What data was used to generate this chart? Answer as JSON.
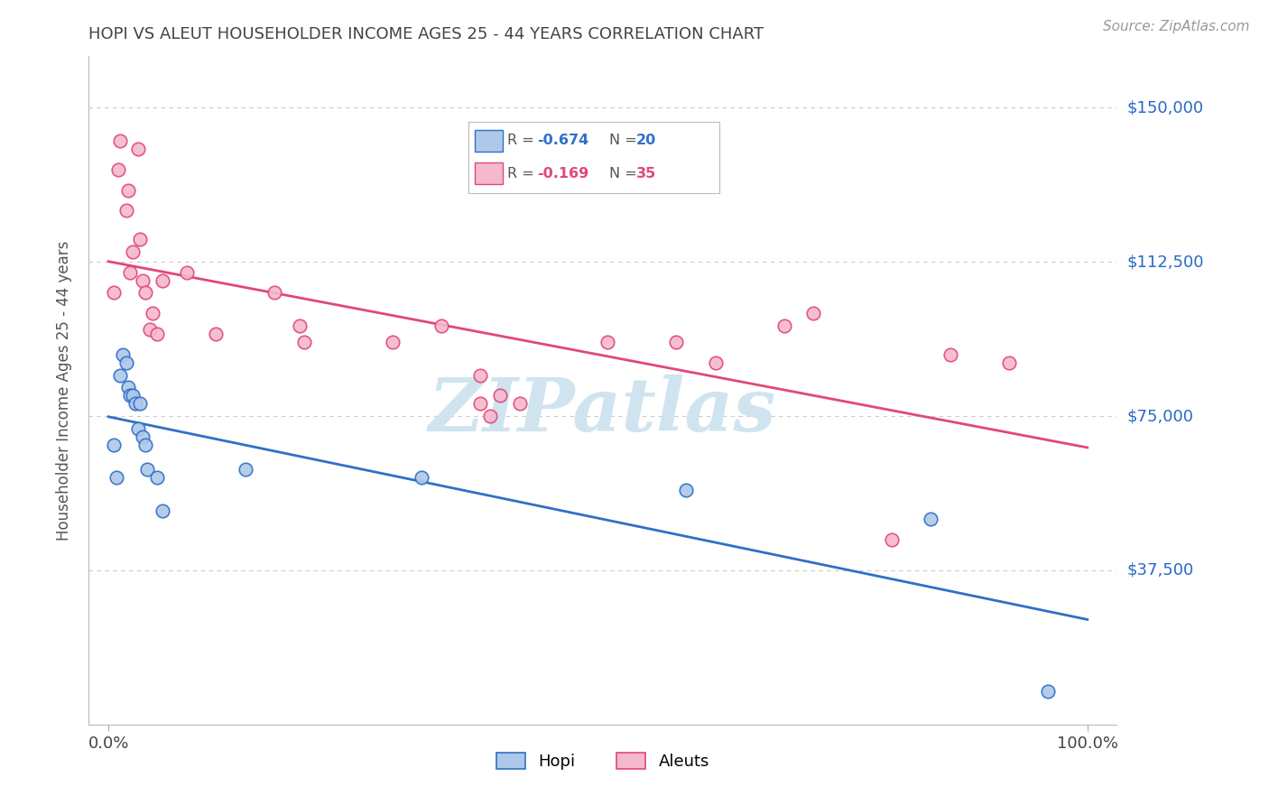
{
  "title": "HOPI VS ALEUT HOUSEHOLDER INCOME AGES 25 - 44 YEARS CORRELATION CHART",
  "source": "Source: ZipAtlas.com",
  "ylabel": "Householder Income Ages 25 - 44 years",
  "x_tick_labels": [
    "0.0%",
    "100.0%"
  ],
  "y_tick_labels": [
    "$37,500",
    "$75,000",
    "$112,500",
    "$150,000"
  ],
  "y_tick_values": [
    37500,
    75000,
    112500,
    150000
  ],
  "y_min": 0,
  "y_max": 162500,
  "x_min": 0.0,
  "x_max": 1.0,
  "hopi_color": "#adc8e8",
  "aleut_color": "#f5b8cc",
  "hopi_line_color": "#3070c8",
  "aleut_line_color": "#e04878",
  "hopi_x": [
    0.005,
    0.008,
    0.012,
    0.015,
    0.018,
    0.02,
    0.022,
    0.025,
    0.028,
    0.03,
    0.032,
    0.035,
    0.038,
    0.04,
    0.05,
    0.055,
    0.14,
    0.32,
    0.59,
    0.84,
    0.96
  ],
  "hopi_y": [
    68000,
    60000,
    85000,
    90000,
    88000,
    82000,
    80000,
    80000,
    78000,
    72000,
    78000,
    70000,
    68000,
    62000,
    60000,
    52000,
    62000,
    60000,
    57000,
    50000,
    8000
  ],
  "aleut_x": [
    0.005,
    0.01,
    0.012,
    0.018,
    0.02,
    0.022,
    0.025,
    0.03,
    0.032,
    0.035,
    0.038,
    0.042,
    0.045,
    0.05,
    0.055,
    0.08,
    0.11,
    0.17,
    0.195,
    0.2,
    0.29,
    0.34,
    0.38,
    0.4,
    0.38,
    0.39,
    0.42,
    0.51,
    0.58,
    0.62,
    0.69,
    0.72,
    0.8,
    0.86,
    0.92
  ],
  "aleut_y": [
    105000,
    135000,
    142000,
    125000,
    130000,
    110000,
    115000,
    140000,
    118000,
    108000,
    105000,
    96000,
    100000,
    95000,
    108000,
    110000,
    95000,
    105000,
    97000,
    93000,
    93000,
    97000,
    85000,
    80000,
    78000,
    75000,
    78000,
    93000,
    93000,
    88000,
    97000,
    100000,
    45000,
    90000,
    88000
  ],
  "background_color": "#ffffff",
  "grid_color": "#cccccc",
  "watermark_text": "ZIPatlas",
  "watermark_color": "#d0e4f0",
  "title_color": "#444444",
  "axis_label_color": "#555555",
  "y_label_color": "#2868c8",
  "marker_size": 110,
  "marker_lw": 1.2
}
